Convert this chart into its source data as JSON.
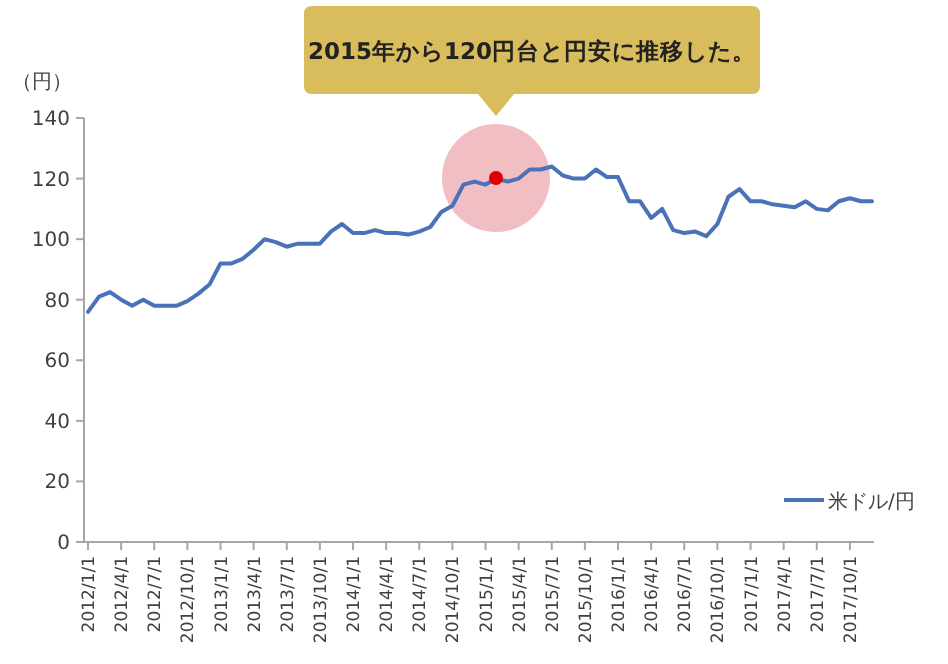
{
  "chart_data": {
    "type": "line",
    "ylabel": "（円）",
    "annotations": [
      "2015年から120円台と円安に推移した。"
    ],
    "x": [
      "2012-01",
      "2012-02",
      "2012-03",
      "2012-04",
      "2012-05",
      "2012-06",
      "2012-07",
      "2012-08",
      "2012-09",
      "2012-10",
      "2012-11",
      "2012-12",
      "2013-01",
      "2013-02",
      "2013-03",
      "2013-04",
      "2013-05",
      "2013-06",
      "2013-07",
      "2013-08",
      "2013-09",
      "2013-10",
      "2013-11",
      "2013-12",
      "2014-01",
      "2014-02",
      "2014-03",
      "2014-04",
      "2014-05",
      "2014-06",
      "2014-07",
      "2014-08",
      "2014-09",
      "2014-10",
      "2014-11",
      "2014-12",
      "2015-01",
      "2015-02",
      "2015-03",
      "2015-04",
      "2015-05",
      "2015-06",
      "2015-07",
      "2015-08",
      "2015-09",
      "2015-10",
      "2015-11",
      "2015-12",
      "2016-01",
      "2016-02",
      "2016-03",
      "2016-04",
      "2016-05",
      "2016-06",
      "2016-07",
      "2016-08",
      "2016-09",
      "2016-10",
      "2016-11",
      "2016-12",
      "2017-01",
      "2017-02",
      "2017-03",
      "2017-04",
      "2017-05",
      "2017-06",
      "2017-07",
      "2017-08",
      "2017-09",
      "2017-10",
      "2017-11",
      "2017-12"
    ],
    "series": [
      {
        "name": "米ドル/円",
        "color": "#4a72b8",
        "values": [
          76,
          81,
          82.5,
          80,
          78,
          80,
          78,
          78,
          78,
          79.5,
          82,
          85,
          92,
          92,
          93.5,
          96.5,
          100,
          99,
          97.5,
          98.5,
          98.5,
          98.5,
          102.5,
          105,
          102,
          102,
          103,
          102,
          102,
          101.5,
          102.5,
          104,
          109,
          111,
          118,
          119,
          118,
          120,
          119,
          120,
          123,
          123,
          124,
          121,
          120,
          120,
          123,
          120.5,
          120.5,
          112.5,
          112.5,
          107,
          110,
          103,
          102,
          102.5,
          101,
          105,
          114,
          116.5,
          112.5,
          112.5,
          111.5,
          111,
          110.5,
          112.5,
          110,
          109.5,
          112.5,
          113.5,
          112.5,
          112.5
        ]
      }
    ],
    "xlim": [
      "2012-01",
      "2017-12"
    ],
    "xticks": [
      {
        "value": "2012-01",
        "label": "2012/1/1"
      },
      {
        "value": "2012-04",
        "label": "2012/4/1"
      },
      {
        "value": "2012-07",
        "label": "2012/7/1"
      },
      {
        "value": "2012-10",
        "label": "2012/10/1"
      },
      {
        "value": "2013-01",
        "label": "2013/1/1"
      },
      {
        "value": "2013-04",
        "label": "2013/4/1"
      },
      {
        "value": "2013-07",
        "label": "2013/7/1"
      },
      {
        "value": "2013-10",
        "label": "2013/10/1"
      },
      {
        "value": "2014-01",
        "label": "2014/1/1"
      },
      {
        "value": "2014-04",
        "label": "2014/4/1"
      },
      {
        "value": "2014-07",
        "label": "2014/7/1"
      },
      {
        "value": "2014-10",
        "label": "2014/10/1"
      },
      {
        "value": "2015-01",
        "label": "2015/1/1"
      },
      {
        "value": "2015-04",
        "label": "2015/4/1"
      },
      {
        "value": "2015-07",
        "label": "2015/7/1"
      },
      {
        "value": "2015-10",
        "label": "2015/10/1"
      },
      {
        "value": "2016-01",
        "label": "2016/1/1"
      },
      {
        "value": "2016-04",
        "label": "2016/4/1"
      },
      {
        "value": "2016-07",
        "label": "2016/7/1"
      },
      {
        "value": "2016-10",
        "label": "2016/10/1"
      },
      {
        "value": "2017-01",
        "label": "2017/1/1"
      },
      {
        "value": "2017-04",
        "label": "2017/4/1"
      },
      {
        "value": "2017-07",
        "label": "2017/7/1"
      },
      {
        "value": "2017-10",
        "label": "2017/10/1"
      }
    ],
    "ylim": [
      0,
      140
    ],
    "yticks": [
      0,
      20,
      40,
      60,
      80,
      100,
      120,
      140
    ],
    "grid": false,
    "legend": "bottom right",
    "marker": "none",
    "line_style": "solid"
  }
}
